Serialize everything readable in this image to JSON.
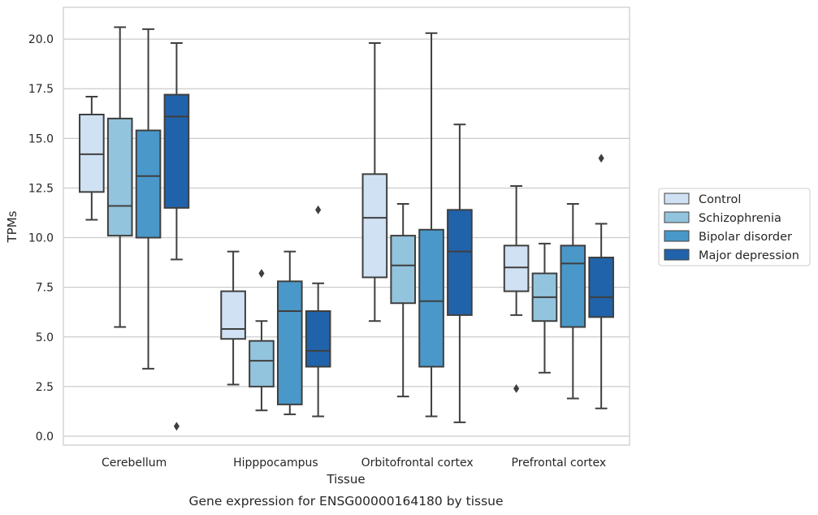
{
  "chart_data": {
    "type": "box",
    "caption": "Gene expression for ENSG00000164180 by tissue",
    "xlabel": "Tissue",
    "ylabel": "TPMs",
    "ylim": [
      -0.45,
      21.6
    ],
    "yticks": [
      0.0,
      2.5,
      5.0,
      7.5,
      10.0,
      12.5,
      15.0,
      17.5,
      20.0
    ],
    "ytick_labels": [
      "0.0",
      "2.5",
      "5.0",
      "7.5",
      "10.0",
      "12.5",
      "15.0",
      "17.5",
      "20.0"
    ],
    "categories": [
      "Cerebellum",
      "Hipppocampus",
      "Orbitofrontal cortex",
      "Prefrontal cortex"
    ],
    "grid": "horizontal",
    "legend_position": "right",
    "series": [
      {
        "name": "Control",
        "color": "#cfe1f2",
        "boxes": [
          {
            "whislo": 10.9,
            "q1": 12.3,
            "med": 14.2,
            "q3": 16.2,
            "whishi": 17.1,
            "fliers": []
          },
          {
            "whislo": 2.6,
            "q1": 4.9,
            "med": 5.4,
            "q3": 7.3,
            "whishi": 9.3,
            "fliers": []
          },
          {
            "whislo": 5.8,
            "q1": 8.0,
            "med": 11.0,
            "q3": 13.2,
            "whishi": 19.8,
            "fliers": []
          },
          {
            "whislo": 6.1,
            "q1": 7.3,
            "med": 8.5,
            "q3": 9.6,
            "whishi": 12.6,
            "fliers": [
              2.4
            ]
          }
        ]
      },
      {
        "name": "Schizophrenia",
        "color": "#93c4de",
        "boxes": [
          {
            "whislo": 5.5,
            "q1": 10.1,
            "med": 11.6,
            "q3": 16.0,
            "whishi": 20.6,
            "fliers": []
          },
          {
            "whislo": 1.3,
            "q1": 2.5,
            "med": 3.8,
            "q3": 4.8,
            "whishi": 5.8,
            "fliers": [
              8.2
            ]
          },
          {
            "whislo": 2.0,
            "q1": 6.7,
            "med": 8.6,
            "q3": 10.1,
            "whishi": 11.7,
            "fliers": []
          },
          {
            "whislo": 3.2,
            "q1": 5.8,
            "med": 7.0,
            "q3": 8.2,
            "whishi": 9.7,
            "fliers": []
          }
        ]
      },
      {
        "name": "Bipolar disorder",
        "color": "#4a98c9",
        "boxes": [
          {
            "whislo": 3.4,
            "q1": 10.0,
            "med": 13.1,
            "q3": 15.4,
            "whishi": 20.5,
            "fliers": []
          },
          {
            "whislo": 1.1,
            "q1": 1.6,
            "med": 6.3,
            "q3": 7.8,
            "whishi": 9.3,
            "fliers": []
          },
          {
            "whislo": 1.0,
            "q1": 3.5,
            "med": 6.8,
            "q3": 10.4,
            "whishi": 20.3,
            "fliers": []
          },
          {
            "whislo": 1.9,
            "q1": 5.5,
            "med": 8.7,
            "q3": 9.6,
            "whishi": 11.7,
            "fliers": []
          }
        ]
      },
      {
        "name": "Major depression",
        "color": "#2163aa",
        "boxes": [
          {
            "whislo": 8.9,
            "q1": 11.5,
            "med": 16.1,
            "q3": 17.2,
            "whishi": 19.8,
            "fliers": [
              0.5
            ]
          },
          {
            "whislo": 1.0,
            "q1": 3.5,
            "med": 4.3,
            "q3": 6.3,
            "whishi": 7.7,
            "fliers": [
              11.4
            ]
          },
          {
            "whislo": 0.7,
            "q1": 6.1,
            "med": 9.3,
            "q3": 11.4,
            "whishi": 15.7,
            "fliers": []
          },
          {
            "whislo": 1.4,
            "q1": 6.0,
            "med": 7.0,
            "q3": 9.0,
            "whishi": 10.7,
            "fliers": [
              14.0
            ]
          }
        ]
      }
    ]
  }
}
